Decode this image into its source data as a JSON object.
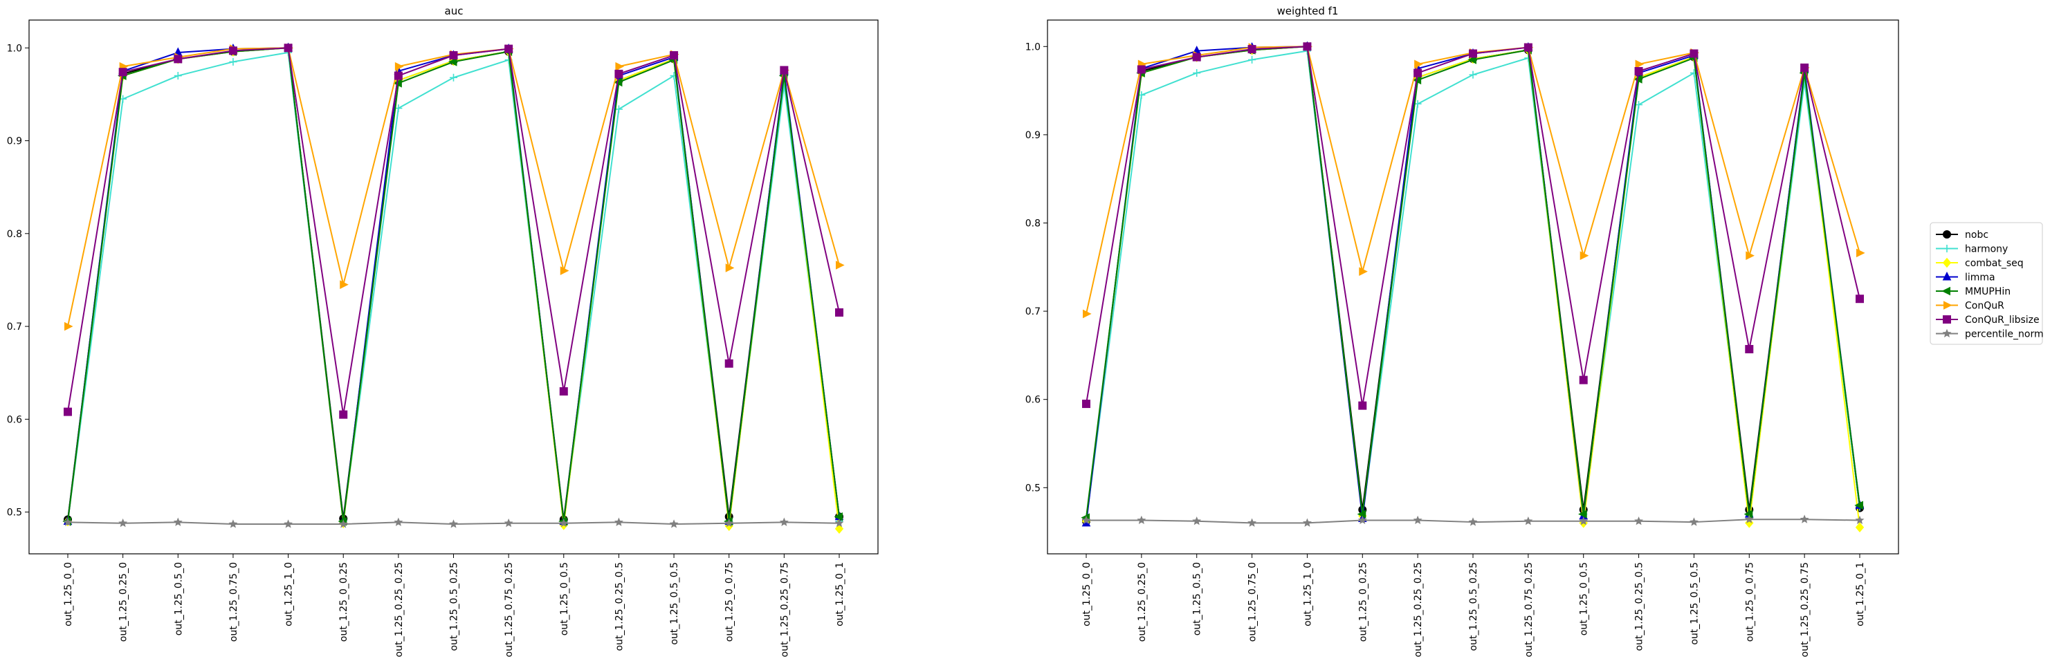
{
  "chart_data": [
    {
      "type": "line",
      "title": "auc",
      "xlabel": "",
      "ylabel": "",
      "ylim": [
        0.455,
        1.03
      ],
      "yticks": [
        0.5,
        0.6,
        0.7,
        0.8,
        0.9,
        1.0
      ],
      "yticklabels": [
        "0.5",
        "0.6",
        "0.7",
        "0.8",
        "0.9",
        "1.0"
      ],
      "grid": false,
      "categories": [
        "out_1.25_0_0",
        "out_1.25_0.25_0",
        "out_1.25_0.5_0",
        "out_1.25_0.75_0",
        "out_1.25_1_0",
        "out_1.25_0_0.25",
        "out_1.25_0.25_0.25",
        "out_1.25_0.5_0.25",
        "out_1.25_0.75_0.25",
        "out_1.25_0_0.5",
        "out_1.25_0.25_0.5",
        "out_1.25_0.5_0.5",
        "out_1.25_0_0.75",
        "out_1.25_0.25_0.75",
        "out_1.25_0_1"
      ],
      "series": [
        {
          "name": "nobc",
          "color": "#000000",
          "marker": "o",
          "values": [
            0.492,
            0.972,
            0.988,
            0.996,
            1.0,
            0.493,
            0.965,
            0.986,
            0.996,
            0.492,
            0.965,
            0.988,
            0.495,
            0.972,
            0.495
          ]
        },
        {
          "name": "harmony",
          "color": "#40e0d0",
          "marker": "+",
          "values": [
            0.49,
            0.945,
            0.97,
            0.985,
            0.995,
            0.49,
            0.935,
            0.968,
            0.987,
            0.49,
            0.934,
            0.97,
            0.49,
            0.96,
            0.49
          ]
        },
        {
          "name": "combat_seq",
          "color": "#ffff00",
          "marker": "D",
          "values": [
            0.49,
            0.97,
            0.988,
            0.996,
            1.0,
            0.488,
            0.965,
            0.986,
            0.996,
            0.486,
            0.965,
            0.988,
            0.485,
            0.972,
            0.482
          ]
        },
        {
          "name": "limma",
          "color": "#0000cd",
          "marker": "^",
          "values": [
            0.49,
            0.975,
            0.995,
            0.999,
            1.0,
            0.49,
            0.975,
            0.992,
            0.999,
            0.49,
            0.97,
            0.99,
            0.49,
            0.974,
            0.495
          ]
        },
        {
          "name": "MMUPHin",
          "color": "#008000",
          "marker": "<",
          "values": [
            0.49,
            0.97,
            0.988,
            0.996,
            1.0,
            0.49,
            0.962,
            0.985,
            0.996,
            0.49,
            0.963,
            0.987,
            0.49,
            0.97,
            0.495
          ]
        },
        {
          "name": "ConQuR",
          "color": "#ffa500",
          "marker": ">",
          "values": [
            0.7,
            0.98,
            0.99,
            0.999,
            1.0,
            0.745,
            0.98,
            0.993,
            0.999,
            0.76,
            0.98,
            0.993,
            0.763,
            0.976,
            0.766
          ]
        },
        {
          "name": "ConQuR_libsize",
          "color": "#800080",
          "marker": "s",
          "values": [
            0.608,
            0.974,
            0.988,
            0.997,
            1.0,
            0.605,
            0.97,
            0.992,
            0.999,
            0.63,
            0.972,
            0.992,
            0.66,
            0.976,
            0.715
          ]
        },
        {
          "name": "percentile_norm",
          "color": "#808080",
          "marker": "*",
          "values": [
            0.489,
            0.488,
            0.489,
            0.487,
            0.487,
            0.487,
            0.489,
            0.487,
            0.488,
            0.488,
            0.489,
            0.487,
            0.488,
            0.489,
            0.488
          ]
        }
      ]
    },
    {
      "type": "line",
      "title": "weighted f1",
      "xlabel": "",
      "ylabel": "",
      "ylim": [
        0.425,
        1.03
      ],
      "yticks": [
        0.5,
        0.6,
        0.7,
        0.8,
        0.9,
        1.0
      ],
      "yticklabels": [
        "0.5",
        "0.6",
        "0.7",
        "0.8",
        "0.9",
        "1.0"
      ],
      "grid": false,
      "categories": [
        "out_1.25_0_0",
        "out_1.25_0.25_0",
        "out_1.25_0.5_0",
        "out_1.25_0.75_0",
        "out_1.25_1_0",
        "out_1.25_0_0.25",
        "out_1.25_0.25_0.25",
        "out_1.25_0.5_0.25",
        "out_1.25_0.75_0.25",
        "out_1.25_0_0.5",
        "out_1.25_0.25_0.5",
        "out_1.25_0.5_0.5",
        "out_1.25_0_0.75",
        "out_1.25_0.25_0.75",
        "out_1.25_0_1"
      ],
      "series": [
        {
          "name": "nobc",
          "color": "#000000",
          "marker": "o",
          "values": [
            0.462,
            0.972,
            0.988,
            0.996,
            1.0,
            0.475,
            0.965,
            0.986,
            0.996,
            0.475,
            0.965,
            0.988,
            0.475,
            0.972,
            0.477
          ]
        },
        {
          "name": "harmony",
          "color": "#40e0d0",
          "marker": "+",
          "values": [
            0.462,
            0.945,
            0.97,
            0.985,
            0.995,
            0.468,
            0.935,
            0.968,
            0.987,
            0.47,
            0.934,
            0.97,
            0.468,
            0.96,
            0.478
          ]
        },
        {
          "name": "combat_seq",
          "color": "#ffff00",
          "marker": "D",
          "values": [
            0.462,
            0.97,
            0.988,
            0.996,
            1.0,
            0.468,
            0.965,
            0.986,
            0.996,
            0.46,
            0.965,
            0.988,
            0.46,
            0.972,
            0.455
          ]
        },
        {
          "name": "limma",
          "color": "#0000cd",
          "marker": "^",
          "values": [
            0.46,
            0.975,
            0.995,
            0.999,
            1.0,
            0.465,
            0.975,
            0.992,
            0.999,
            0.468,
            0.97,
            0.99,
            0.47,
            0.974,
            0.48
          ]
        },
        {
          "name": "MMUPHin",
          "color": "#008000",
          "marker": "<",
          "values": [
            0.466,
            0.97,
            0.988,
            0.996,
            1.0,
            0.47,
            0.962,
            0.985,
            0.996,
            0.47,
            0.963,
            0.987,
            0.47,
            0.97,
            0.48
          ]
        },
        {
          "name": "ConQuR",
          "color": "#ffa500",
          "marker": ">",
          "values": [
            0.697,
            0.98,
            0.99,
            0.999,
            1.0,
            0.745,
            0.98,
            0.993,
            0.999,
            0.763,
            0.98,
            0.993,
            0.763,
            0.976,
            0.766
          ]
        },
        {
          "name": "ConQuR_libsize",
          "color": "#800080",
          "marker": "s",
          "values": [
            0.595,
            0.974,
            0.988,
            0.997,
            1.0,
            0.593,
            0.97,
            0.992,
            0.999,
            0.622,
            0.972,
            0.992,
            0.657,
            0.976,
            0.714
          ]
        },
        {
          "name": "percentile_norm",
          "color": "#808080",
          "marker": "*",
          "values": [
            0.463,
            0.463,
            0.462,
            0.46,
            0.46,
            0.463,
            0.463,
            0.461,
            0.462,
            0.462,
            0.462,
            0.461,
            0.464,
            0.464,
            0.463
          ]
        }
      ]
    }
  ]
}
